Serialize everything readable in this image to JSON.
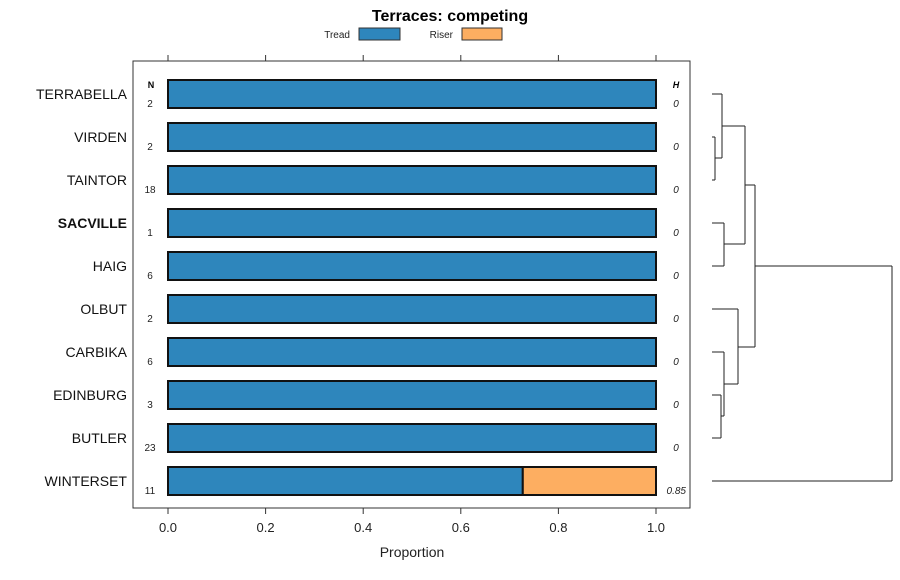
{
  "chart_data": {
    "type": "bar",
    "stacked": true,
    "orientation": "horizontal",
    "title": "Terraces: competing",
    "xlabel": "Proportion",
    "xlim": [
      0,
      1
    ],
    "xticks": [
      "0.0",
      "0.2",
      "0.4",
      "0.6",
      "0.8",
      "1.0"
    ],
    "n_header": "N",
    "h_header": "H",
    "legend": [
      {
        "name": "Tread",
        "color": "#2E86BC"
      },
      {
        "name": "Riser",
        "color": "#FDAE61"
      }
    ],
    "legend_placement": "top",
    "categories": [
      "TERRABELLA",
      "VIRDEN",
      "TAINTOR",
      "SACVILLE",
      "HAIG",
      "OLBUT",
      "CARBIKA",
      "EDINBURG",
      "BUTLER",
      "WINTERSET"
    ],
    "highlighted": "SACVILLE",
    "n": [
      "2",
      "2",
      "18",
      "1",
      "6",
      "2",
      "6",
      "3",
      "23",
      "11"
    ],
    "h": [
      "0",
      "0",
      "0",
      "0",
      "0",
      "0",
      "0",
      "0",
      "0",
      "0.85"
    ],
    "series": [
      {
        "name": "Tread",
        "values": [
          1,
          1,
          1,
          1,
          1,
          1,
          1,
          1,
          1,
          0.727
        ]
      },
      {
        "name": "Riser",
        "values": [
          0,
          0,
          0,
          0,
          0,
          0,
          0,
          0,
          0,
          0.273
        ]
      }
    ],
    "dendrogram": "hierarchical clustering of rows shown at right"
  }
}
